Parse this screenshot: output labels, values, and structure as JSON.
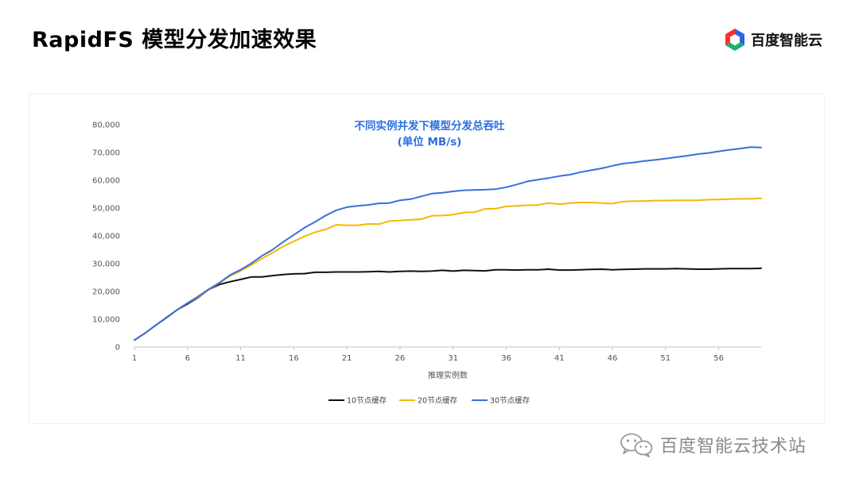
{
  "slide": {
    "title": "RapidFS 模型分发加速效果",
    "brand": "百度智能云",
    "watermark": "百度智能云技术站"
  },
  "colors": {
    "accent": "#2d6fe0",
    "series_10": "#111111",
    "series_20": "#f5b800",
    "series_30": "#3a6fd8",
    "axis": "#bfbfbf"
  },
  "icons": {
    "logo": "baidu-cloud-cube-icon",
    "watermark": "wechat-icon"
  },
  "chart_data": {
    "type": "line",
    "title": "不同实例并发下模型分发总吞吐",
    "subtitle": "(单位 MB/s)",
    "xlabel": "推理实例数",
    "ylabel": "",
    "x": [
      1,
      2,
      3,
      4,
      5,
      6,
      7,
      8,
      9,
      10,
      11,
      12,
      13,
      14,
      15,
      16,
      17,
      18,
      19,
      20,
      21,
      22,
      23,
      24,
      25,
      26,
      27,
      28,
      29,
      30,
      31,
      32,
      33,
      34,
      35,
      36,
      37,
      38,
      39,
      40,
      41,
      42,
      43,
      44,
      45,
      46,
      47,
      48,
      49,
      50,
      51,
      52,
      53,
      54,
      55,
      56,
      57,
      58,
      59,
      60
    ],
    "x_tick_labels": [
      "1",
      "6",
      "11",
      "16",
      "21",
      "26",
      "31",
      "36",
      "41",
      "46",
      "51",
      "56"
    ],
    "y_tick_labels": [
      "0",
      "10,000",
      "20,000",
      "30,000",
      "40,000",
      "50,000",
      "60,000",
      "70,000",
      "80,000"
    ],
    "ylim": [
      0,
      80000
    ],
    "grid": false,
    "legend_position": "bottom",
    "series": [
      {
        "name": "10节点缓存",
        "values": [
          2500,
          5000,
          7800,
          10500,
          13300,
          15500,
          17800,
          20700,
          22500,
          23500,
          24300,
          25200,
          25200,
          25700,
          26100,
          26300,
          26400,
          26900,
          26900,
          27000,
          27000,
          27000,
          27100,
          27200,
          27000,
          27200,
          27300,
          27200,
          27300,
          27600,
          27300,
          27600,
          27500,
          27400,
          27800,
          27800,
          27700,
          27800,
          27800,
          28000,
          27700,
          27700,
          27800,
          27900,
          28000,
          27800,
          27900,
          28000,
          28100,
          28100,
          28100,
          28200,
          28100,
          28000,
          28000,
          28100,
          28200,
          28200,
          28200,
          28300
        ]
      },
      {
        "name": "20节点缓存",
        "values": [
          2500,
          5000,
          7800,
          10600,
          13300,
          15800,
          18000,
          20700,
          23000,
          25600,
          27400,
          29500,
          31800,
          33900,
          36200,
          38000,
          39800,
          41300,
          42300,
          44000,
          43800,
          43800,
          44300,
          44200,
          45300,
          45500,
          45800,
          46000,
          47200,
          47300,
          47600,
          48400,
          48500,
          49700,
          49800,
          50600,
          50800,
          51000,
          51100,
          51800,
          51400,
          51800,
          52000,
          52000,
          51800,
          51600,
          52300,
          52500,
          52500,
          52700,
          52700,
          52800,
          52800,
          52800,
          53000,
          53100,
          53200,
          53300,
          53300,
          53500
        ]
      },
      {
        "name": "30节点缓存",
        "values": [
          2500,
          5000,
          7800,
          10600,
          13300,
          15800,
          18200,
          20800,
          23100,
          25900,
          27800,
          30100,
          32800,
          35000,
          37800,
          40300,
          42900,
          45000,
          47300,
          49200,
          50300,
          50800,
          51100,
          51700,
          51800,
          52800,
          53200,
          54200,
          55200,
          55500,
          56000,
          56400,
          56500,
          56600,
          56800,
          57500,
          58500,
          59600,
          60200,
          60800,
          61500,
          62000,
          62900,
          63600,
          64300,
          65200,
          66000,
          66400,
          66900,
          67300,
          67800,
          68300,
          68800,
          69400,
          69800,
          70400,
          70900,
          71400,
          71900,
          71800
        ]
      }
    ]
  }
}
